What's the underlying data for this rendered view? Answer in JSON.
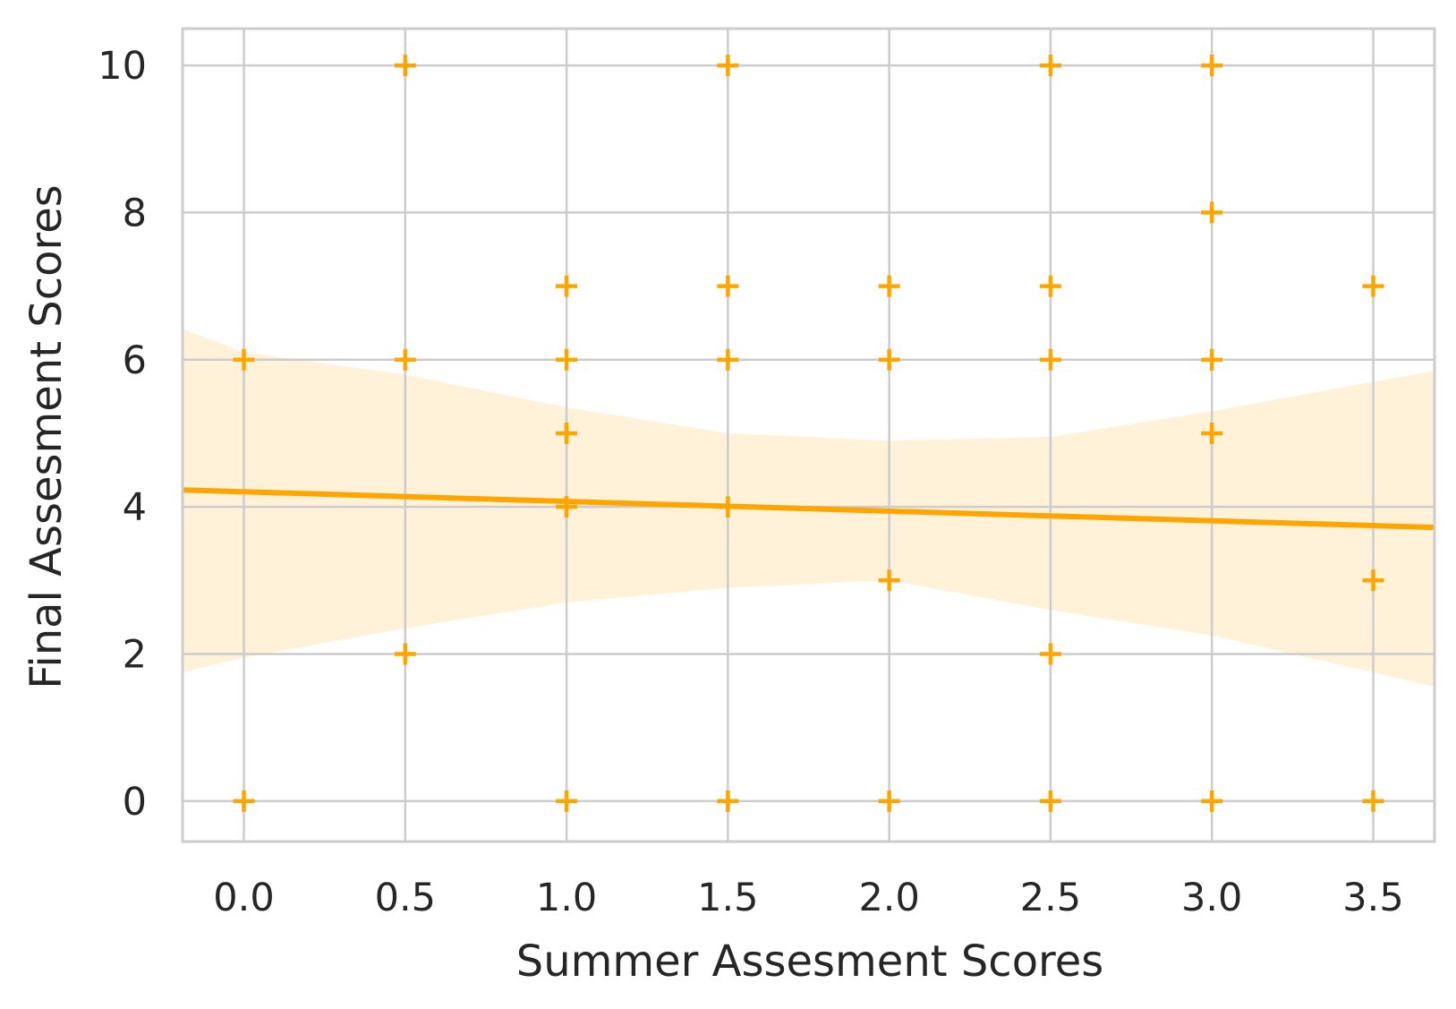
{
  "chart_data": {
    "type": "scatter",
    "title": "",
    "xlabel": "Summer Assesment Scores",
    "ylabel": "Final Assesment Scores",
    "xlim": [
      -0.19,
      3.69
    ],
    "ylim": [
      -0.55,
      10.5
    ],
    "x_ticks": [
      "0.0",
      "0.5",
      "1.0",
      "1.5",
      "2.0",
      "2.5",
      "3.0",
      "3.5"
    ],
    "y_ticks": [
      "0",
      "2",
      "4",
      "6",
      "8",
      "10"
    ],
    "grid": true,
    "marker": "+",
    "colors": {
      "points": "#FFA500",
      "regression_line": "#FFA500",
      "confidence_band": "#FFA500",
      "grid": "#CCCCCC",
      "frame": "#CCCCCC",
      "text": "#262626"
    },
    "points": [
      {
        "x": 0.0,
        "y": 6
      },
      {
        "x": 0.0,
        "y": 0
      },
      {
        "x": 0.5,
        "y": 10
      },
      {
        "x": 0.5,
        "y": 6
      },
      {
        "x": 0.5,
        "y": 2
      },
      {
        "x": 1.0,
        "y": 7
      },
      {
        "x": 1.0,
        "y": 6
      },
      {
        "x": 1.0,
        "y": 5
      },
      {
        "x": 1.0,
        "y": 4
      },
      {
        "x": 1.0,
        "y": 0
      },
      {
        "x": 1.5,
        "y": 10
      },
      {
        "x": 1.5,
        "y": 7
      },
      {
        "x": 1.5,
        "y": 6
      },
      {
        "x": 1.5,
        "y": 4
      },
      {
        "x": 1.5,
        "y": 0
      },
      {
        "x": 2.0,
        "y": 7
      },
      {
        "x": 2.0,
        "y": 6
      },
      {
        "x": 2.0,
        "y": 3
      },
      {
        "x": 2.0,
        "y": 0
      },
      {
        "x": 2.5,
        "y": 10
      },
      {
        "x": 2.5,
        "y": 7
      },
      {
        "x": 2.5,
        "y": 6
      },
      {
        "x": 2.5,
        "y": 2
      },
      {
        "x": 2.5,
        "y": 0
      },
      {
        "x": 3.0,
        "y": 10
      },
      {
        "x": 3.0,
        "y": 8
      },
      {
        "x": 3.0,
        "y": 6
      },
      {
        "x": 3.0,
        "y": 5
      },
      {
        "x": 3.0,
        "y": 0
      },
      {
        "x": 3.5,
        "y": 7
      },
      {
        "x": 3.5,
        "y": 3
      },
      {
        "x": 3.5,
        "y": 0
      }
    ],
    "regression_line": {
      "x": [
        -0.19,
        3.69
      ],
      "y": [
        4.23,
        3.72
      ]
    },
    "confidence_band": {
      "x": [
        -0.19,
        0.0,
        0.5,
        1.0,
        1.5,
        2.0,
        2.5,
        3.0,
        3.5,
        3.69
      ],
      "upper": [
        6.42,
        6.1,
        5.8,
        5.35,
        5.0,
        4.9,
        4.95,
        5.3,
        5.7,
        5.85
      ],
      "lower": [
        1.75,
        1.95,
        2.35,
        2.7,
        2.9,
        3.0,
        2.6,
        2.25,
        1.75,
        1.55
      ]
    }
  }
}
